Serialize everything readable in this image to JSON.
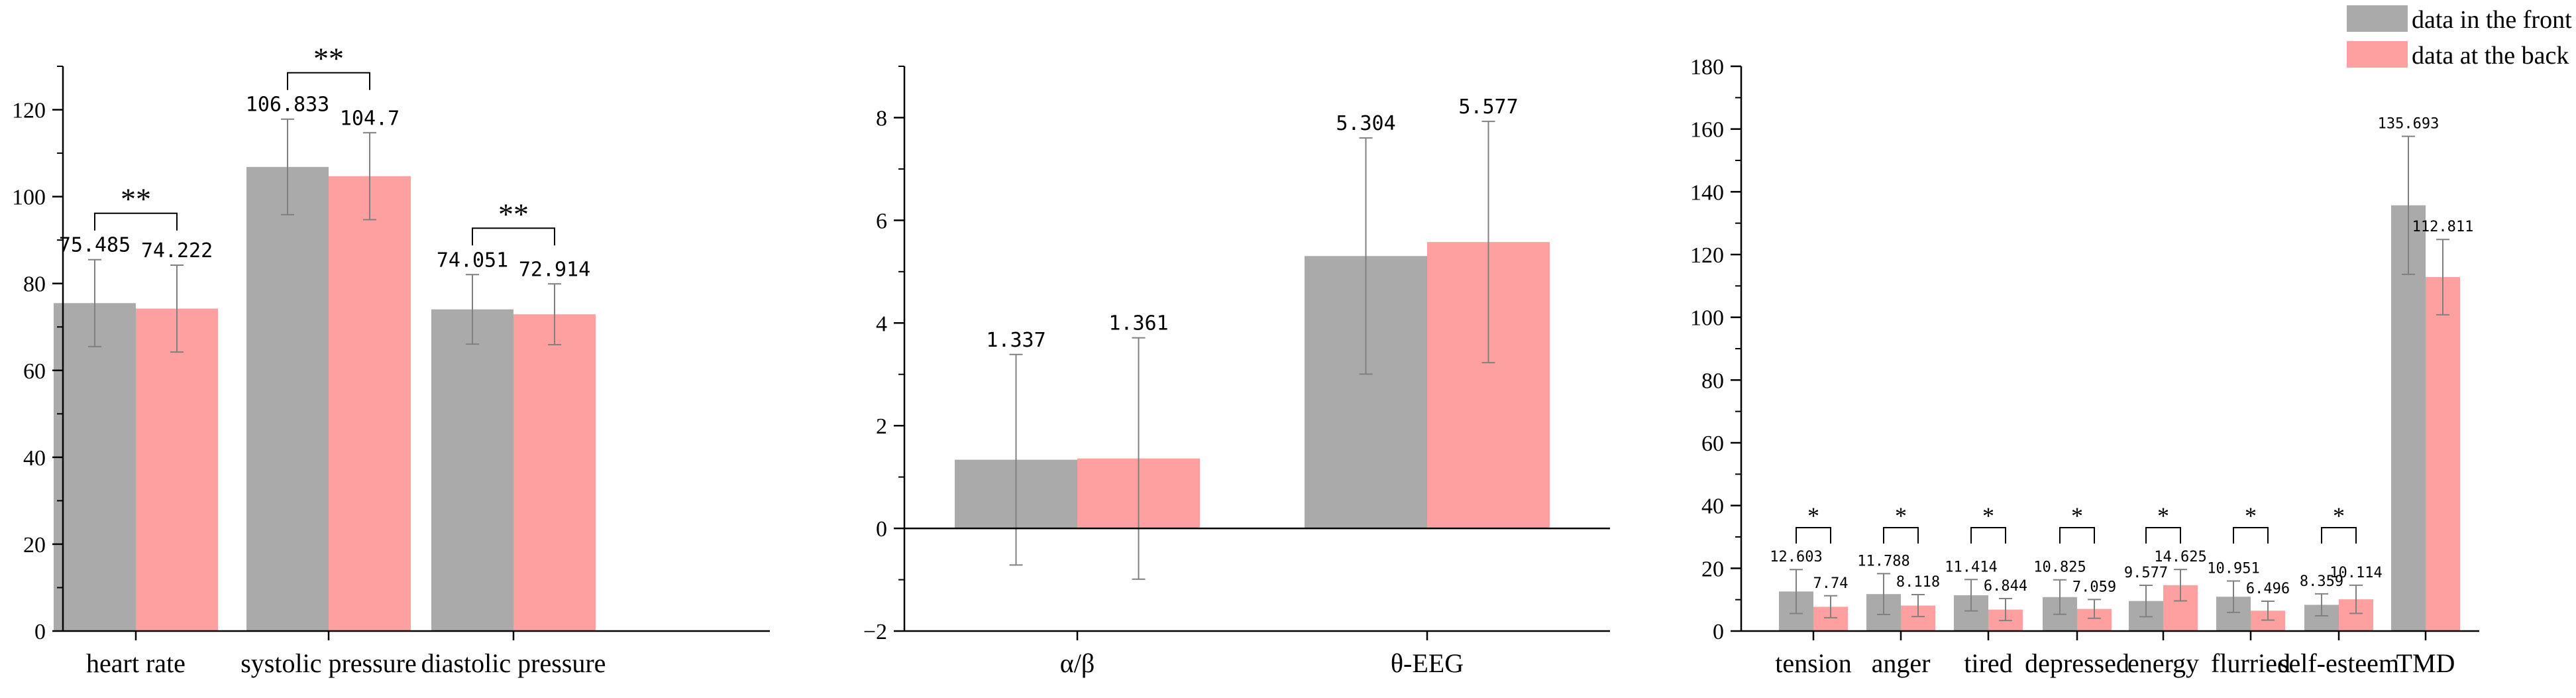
{
  "colors": {
    "front": "#aaaaaa",
    "back": "#ffa0a0",
    "axis": "#000000",
    "error": "#808080"
  },
  "legend": {
    "items": [
      {
        "label": "data in the front",
        "color": "#aaaaaa"
      },
      {
        "label": "data at the back",
        "color": "#ffa0a0"
      }
    ]
  },
  "chart_data": [
    {
      "type": "bar",
      "categories": [
        "heart rate",
        "systolic pressure",
        "diastolic pressure"
      ],
      "series": [
        {
          "name": "data in the front",
          "values": [
            75.485,
            106.833,
            74.051
          ],
          "errors": [
            10,
            11,
            8
          ],
          "labels": [
            "75.485",
            "106.833",
            "74.051"
          ]
        },
        {
          "name": "data at the back",
          "values": [
            74.222,
            104.7,
            72.914
          ],
          "errors": [
            10,
            10,
            7
          ],
          "labels": [
            "74.222",
            "104.7",
            "72.914"
          ]
        }
      ],
      "significance": [
        "**",
        "**",
        "**"
      ],
      "yticks": [
        0,
        20,
        40,
        60,
        80,
        100,
        120
      ],
      "ylim": [
        0,
        130
      ],
      "legend": "none",
      "grid": false
    },
    {
      "type": "bar",
      "categories": [
        "α/β",
        "θ-EEG"
      ],
      "series": [
        {
          "name": "data in the front",
          "values": [
            1.337,
            5.304
          ],
          "errors": [
            2.05,
            2.3
          ],
          "labels": [
            "1.337",
            "5.304"
          ]
        },
        {
          "name": "data at the back",
          "values": [
            1.361,
            5.577
          ],
          "errors": [
            2.35,
            2.35
          ],
          "labels": [
            "1.361",
            "5.577"
          ]
        }
      ],
      "significance": [
        "",
        ""
      ],
      "yticks": [
        -2,
        0,
        2,
        4,
        6,
        8
      ],
      "ylim": [
        -2,
        9
      ],
      "legend": "none",
      "grid": false
    },
    {
      "type": "bar",
      "categories": [
        "tension",
        "anger",
        "tired",
        "depressed",
        "energy",
        "flurried",
        "self-esteem",
        "TMD"
      ],
      "series": [
        {
          "name": "data in the front",
          "values": [
            12.603,
            11.788,
            11.414,
            10.825,
            9.577,
            10.951,
            8.359,
            135.693
          ],
          "errors": [
            7,
            6.5,
            5,
            5.5,
            5,
            5,
            3.5,
            22
          ],
          "labels": [
            "12.603",
            "11.788",
            "11.414",
            "10.825",
            "9.577",
            "10.951",
            "8.359",
            "135.693"
          ]
        },
        {
          "name": "data at the back",
          "values": [
            7.74,
            8.118,
            6.844,
            7.059,
            14.625,
            6.496,
            10.114,
            112.811
          ],
          "errors": [
            3.5,
            3.5,
            3.5,
            3,
            5,
            3,
            4.5,
            12
          ],
          "labels": [
            "7.74",
            "8.118",
            "6.844",
            "7.059",
            "14.625",
            "6.496",
            "10.114",
            "112.811"
          ]
        }
      ],
      "significance": [
        "*",
        "*",
        "*",
        "*",
        "*",
        "*",
        "*",
        ""
      ],
      "yticks": [
        0,
        20,
        40,
        60,
        80,
        100,
        120,
        140,
        160,
        180
      ],
      "ylim": [
        0,
        180
      ],
      "legend": "top-right",
      "grid": false
    }
  ]
}
